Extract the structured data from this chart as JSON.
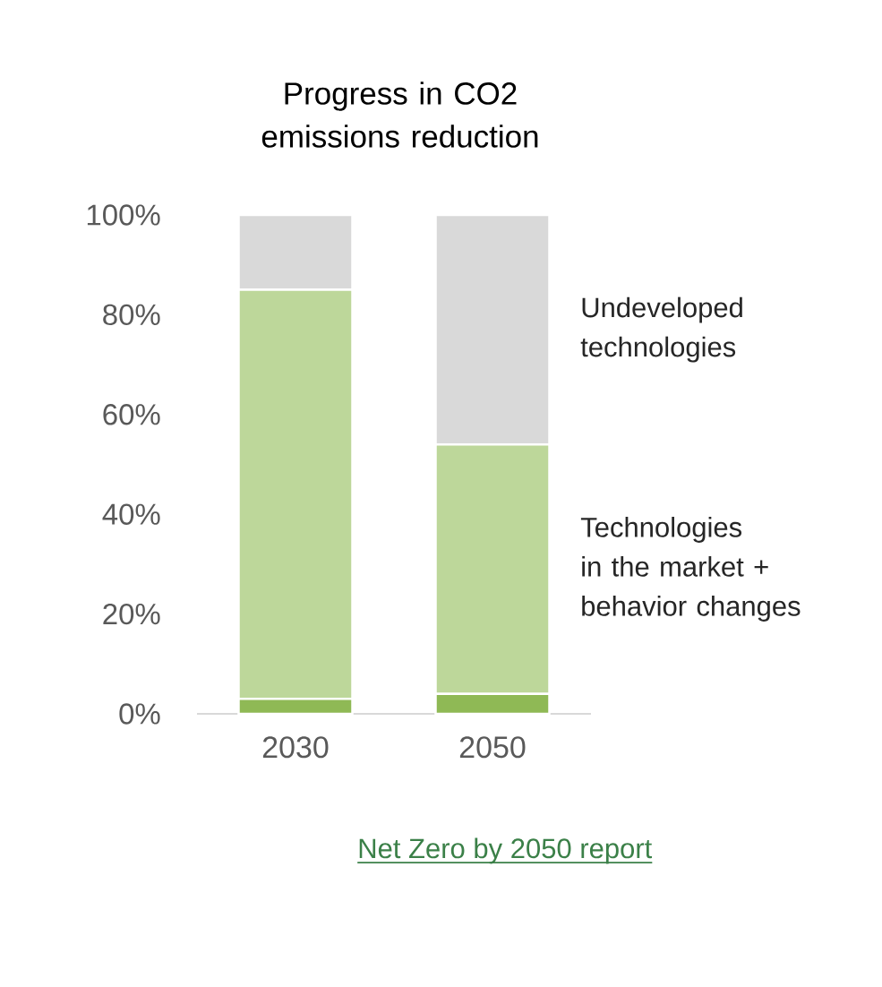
{
  "chart_data": {
    "type": "bar",
    "title": "Progress in CO2 emissions reduction",
    "categories": [
      "2030",
      "2050"
    ],
    "stacked": true,
    "series": [
      {
        "color": "#8fb955",
        "values": [
          3,
          4
        ]
      },
      {
        "name": "Technologies in the market + behavior changes",
        "color": "#bdd79a",
        "values": [
          82,
          50
        ]
      },
      {
        "name": "Undeveloped technologies",
        "color": "#d9d9d9",
        "values": [
          15,
          46
        ]
      }
    ],
    "ylim": [
      0,
      100
    ],
    "yticks": [
      {
        "value": 0,
        "label": "0%"
      },
      {
        "value": 20,
        "label": "20%"
      },
      {
        "value": 40,
        "label": "40%"
      },
      {
        "value": 60,
        "label": "60%"
      },
      {
        "value": 80,
        "label": "80%"
      },
      {
        "value": 100,
        "label": "100%"
      }
    ],
    "annotations": [
      "Net Zero by 2050 report"
    ]
  }
}
